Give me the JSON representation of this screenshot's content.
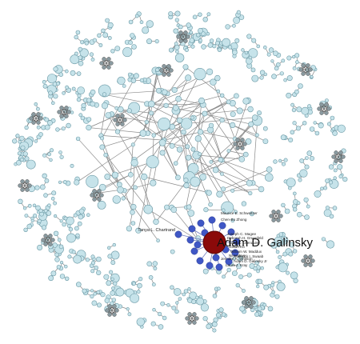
{
  "graph": {
    "focus_node": {
      "label": "Adam D. Galinsky",
      "color": "#8b0a0a"
    },
    "coauthor_labels": [
      "Tanya L. Chartrand",
      "Maurice E. Schweitzer",
      "Chen-Bo Zhong",
      "Joseph C. Magee",
      "Deborah H. Gruenfeld",
      "Katie A. Liljenquist",
      "Gillian Ku",
      "William W. Maddux",
      "Nir Halevy",
      "Jennifer A. Whitson",
      "Roderick I. Swaab",
      "Adam D. Galinsky Jr",
      "Laura J. Kray"
    ],
    "colors": {
      "node_fill": "#c6e3ea",
      "node_stroke": "#6c9aa6",
      "cluster_fill": "#8a9aa0",
      "edge": "#8a8a8a",
      "coauthor_fill": "#3f57c6",
      "focus_fill": "#8b0a0a"
    }
  }
}
